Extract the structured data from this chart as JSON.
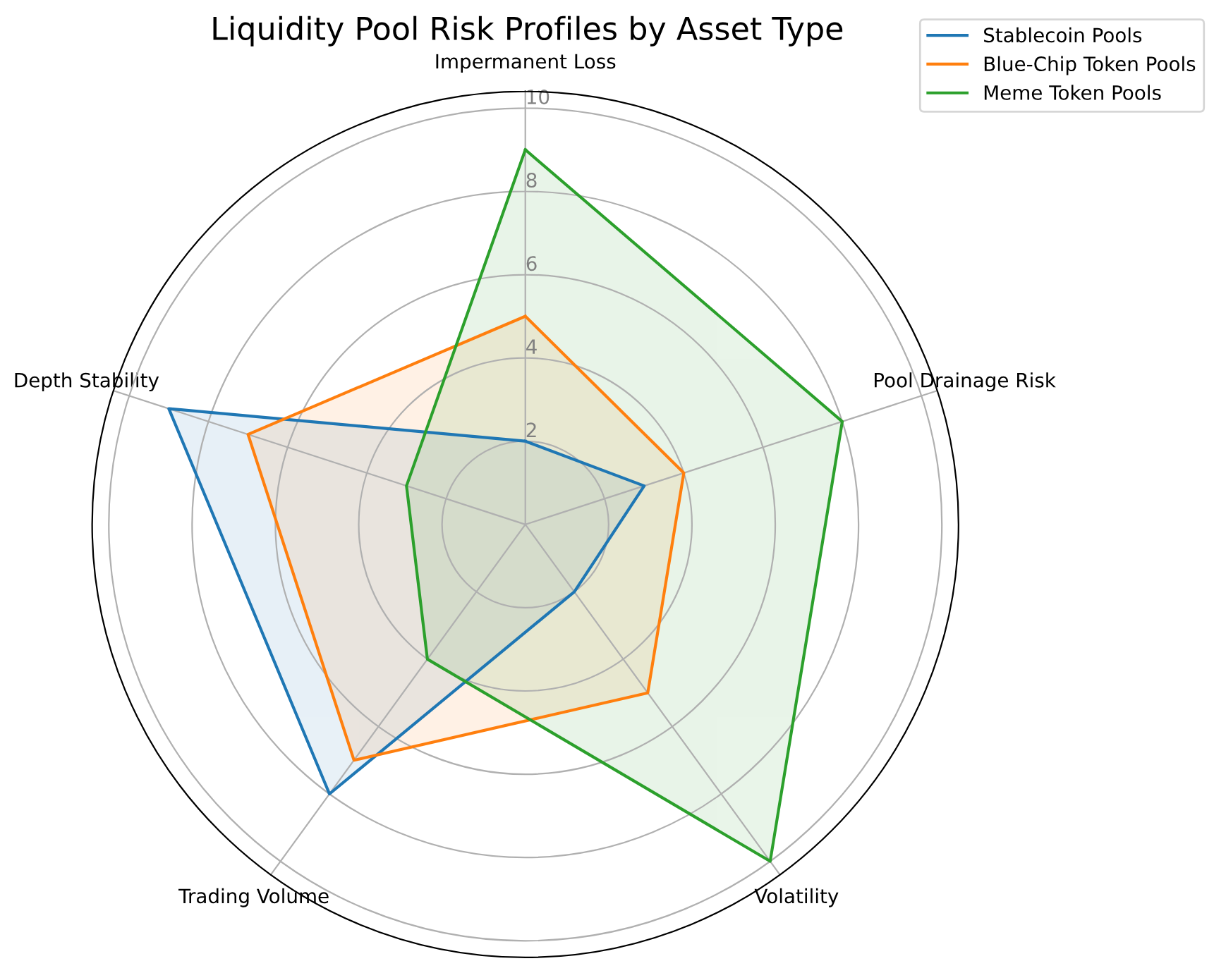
{
  "chart_data": {
    "type": "radar",
    "title": "Liquidity Pool Risk Profiles by Asset Type",
    "categories": [
      "Impermanent Loss",
      "Pool Drainage Risk",
      "Volatility",
      "Trading Volume",
      "Depth Stability"
    ],
    "series": [
      {
        "name": "Stablecoin Pools",
        "color": "#1f77b4",
        "values": [
          2,
          3,
          2,
          8,
          9
        ]
      },
      {
        "name": "Blue-Chip Token Pools",
        "color": "#ff7f0e",
        "values": [
          5,
          4,
          5,
          7,
          7
        ]
      },
      {
        "name": "Meme Token Pools",
        "color": "#2ca02c",
        "values": [
          9,
          8,
          10,
          4,
          3
        ]
      }
    ],
    "ylim": [
      0,
      10.4
    ],
    "yticks": [
      2,
      4,
      6,
      8,
      10
    ],
    "grid": true,
    "legend": "top right"
  }
}
